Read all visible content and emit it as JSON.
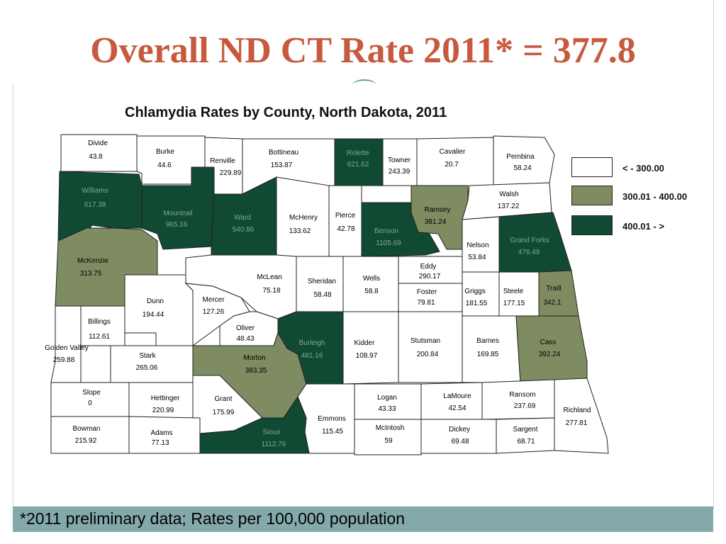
{
  "slide": {
    "title": "Overall ND CT Rate 2011* = 377.8",
    "footnote": "*2011 preliminary data; Rates per 100,000 population"
  },
  "map": {
    "title": "Chlamydia Rates by County, North Dakota, 2011",
    "colors": {
      "low": "#ffffff",
      "mid": "#7f8c62",
      "high": "#114a32",
      "border": "#222222"
    },
    "legend": [
      {
        "key": "low",
        "label": "< - 300.00"
      },
      {
        "key": "mid",
        "label": "300.01 - 400.00"
      },
      {
        "key": "high",
        "label": "400.01 - >"
      }
    ],
    "counties": [
      {
        "name": "Divide",
        "rate": "43.8",
        "level": "low"
      },
      {
        "name": "Burke",
        "rate": "44.6",
        "level": "low"
      },
      {
        "name": "Renville",
        "rate": "229.89",
        "level": "low"
      },
      {
        "name": "Bottineau",
        "rate": "153.87",
        "level": "low"
      },
      {
        "name": "Rolette",
        "rate": "621.62",
        "level": "high"
      },
      {
        "name": "Towner",
        "rate": "243.39",
        "level": "low"
      },
      {
        "name": "Cavalier",
        "rate": "20.7",
        "level": "low"
      },
      {
        "name": "Pembina",
        "rate": "58.24",
        "level": "low"
      },
      {
        "name": "Williams",
        "rate": "617.38",
        "level": "high"
      },
      {
        "name": "Mountrail",
        "rate": "965.16",
        "level": "high"
      },
      {
        "name": "Ward",
        "rate": "540.86",
        "level": "high"
      },
      {
        "name": "McHenry",
        "rate": "133.62",
        "level": "low"
      },
      {
        "name": "Pierce",
        "rate": "42.78",
        "level": "low"
      },
      {
        "name": "Benson",
        "rate": "1105.69",
        "level": "high"
      },
      {
        "name": "Ramsey",
        "rate": "381.24",
        "level": "mid"
      },
      {
        "name": "Walsh",
        "rate": "137.22",
        "level": "low"
      },
      {
        "name": "Nelson",
        "rate": "53.84",
        "level": "low"
      },
      {
        "name": "Grand Forks",
        "rate": "476.49",
        "level": "high"
      },
      {
        "name": "McKenzie",
        "rate": "313.75",
        "level": "mid"
      },
      {
        "name": "Dunn",
        "rate": "194.44",
        "level": "low"
      },
      {
        "name": "McLean",
        "rate": "75.18",
        "level": "low"
      },
      {
        "name": "Mercer",
        "rate": "127.26",
        "level": "low"
      },
      {
        "name": "Sheridan",
        "rate": "58.48",
        "level": "low"
      },
      {
        "name": "Wells",
        "rate": "58.8",
        "level": "low"
      },
      {
        "name": "Eddy",
        "rate": "290.17",
        "level": "low"
      },
      {
        "name": "Foster",
        "rate": "79.81",
        "level": "low"
      },
      {
        "name": "Griggs",
        "rate": "181.55",
        "level": "low"
      },
      {
        "name": "Steele",
        "rate": "177.15",
        "level": "low"
      },
      {
        "name": "Traill",
        "rate": "342.1",
        "level": "mid"
      },
      {
        "name": "Billings",
        "rate": "112.61",
        "level": "low"
      },
      {
        "name": "Golden Valley",
        "rate": "259.88",
        "level": "low"
      },
      {
        "name": "Oliver",
        "rate": "48.43",
        "level": "low"
      },
      {
        "name": "Burleigh",
        "rate": "481.16",
        "level": "high"
      },
      {
        "name": "Kidder",
        "rate": "108.97",
        "level": "low"
      },
      {
        "name": "Stutsman",
        "rate": "200.84",
        "level": "low"
      },
      {
        "name": "Barnes",
        "rate": "169.85",
        "level": "low"
      },
      {
        "name": "Cass",
        "rate": "392.24",
        "level": "mid"
      },
      {
        "name": "Stark",
        "rate": "265.06",
        "level": "low"
      },
      {
        "name": "Morton",
        "rate": "383.35",
        "level": "mid"
      },
      {
        "name": "Slope",
        "rate": "0",
        "level": "low"
      },
      {
        "name": "Hettinger",
        "rate": "220.99",
        "level": "low"
      },
      {
        "name": "Grant",
        "rate": "175.99",
        "level": "low"
      },
      {
        "name": "Emmons",
        "rate": "115.45",
        "level": "low"
      },
      {
        "name": "Logan",
        "rate": "43.33",
        "level": "low"
      },
      {
        "name": "LaMoure",
        "rate": "42.54",
        "level": "low"
      },
      {
        "name": "Ransom",
        "rate": "237.69",
        "level": "low"
      },
      {
        "name": "Richland",
        "rate": "277.81",
        "level": "low"
      },
      {
        "name": "Bowman",
        "rate": "215.92",
        "level": "low"
      },
      {
        "name": "Adams",
        "rate": "77.13",
        "level": "low"
      },
      {
        "name": "Sioux",
        "rate": "1112.76",
        "level": "high"
      },
      {
        "name": "McIntosh",
        "rate": "59",
        "level": "low"
      },
      {
        "name": "Dickey",
        "rate": "69.48",
        "level": "low"
      },
      {
        "name": "Sargent",
        "rate": "68.71",
        "level": "low"
      }
    ]
  }
}
